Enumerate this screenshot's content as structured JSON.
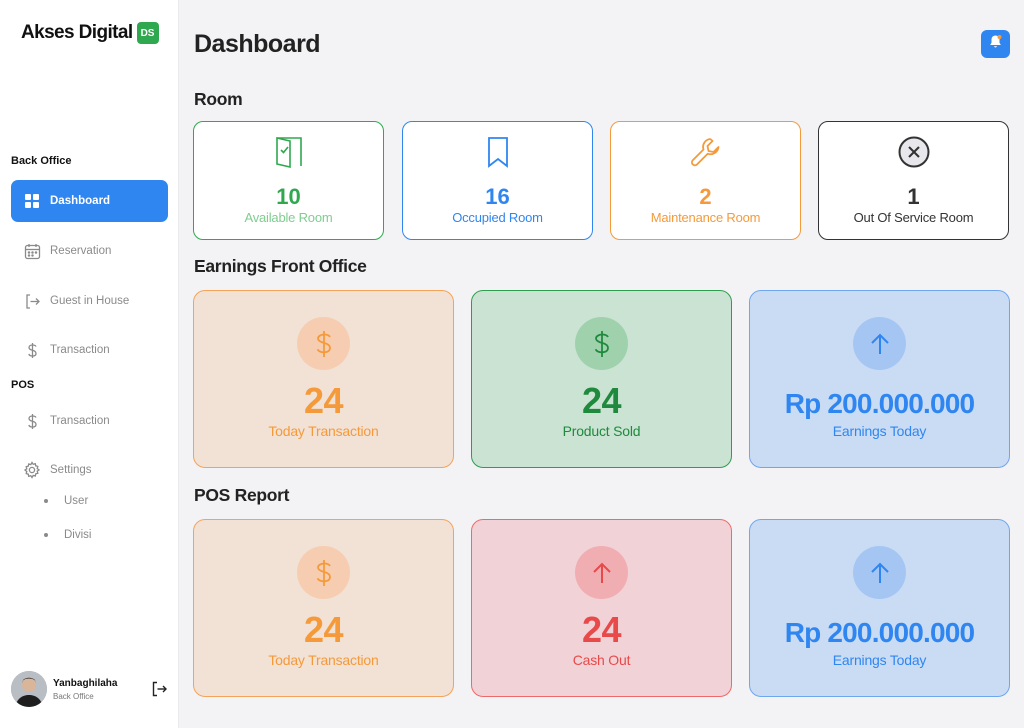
{
  "brand": {
    "name": "Akses Digital",
    "badge": "DS"
  },
  "sidebar": {
    "back_office_label": "Back Office",
    "pos_label": "POS",
    "items": [
      {
        "label": "Dashboard",
        "icon": "grid-icon"
      },
      {
        "label": "Reservation",
        "icon": "calendar-icon"
      },
      {
        "label": "Guest in House",
        "icon": "login-icon"
      },
      {
        "label": "Transaction",
        "icon": "dollar-icon"
      }
    ],
    "pos_items": [
      {
        "label": "Transaction",
        "icon": "dollar-icon"
      },
      {
        "label": "Settings",
        "icon": "gear-icon"
      }
    ],
    "settings_sub": [
      "User",
      "Divisi"
    ],
    "user": {
      "name": "Yanbaghilaha",
      "role": "Back Office"
    }
  },
  "header": {
    "title": "Dashboard"
  },
  "sections": {
    "room": "Room",
    "earnings": "Earnings Front Office",
    "pos_report": "POS Report"
  },
  "rooms": [
    {
      "value": "10",
      "label": "Available Room",
      "color": "#2fa84f"
    },
    {
      "value": "16",
      "label": "Occupied Room",
      "color": "#2f86f0"
    },
    {
      "value": "2",
      "label": "Maintenance Room",
      "color": "#f59a3a"
    },
    {
      "value": "1",
      "label": "Out Of Service Room",
      "color": "#333333"
    }
  ],
  "earnings": [
    {
      "value": "24",
      "label": "Today Transaction",
      "color": "#f59a3a"
    },
    {
      "value": "24",
      "label": "Product Sold",
      "color": "#1f8a3e"
    },
    {
      "value": "Rp 200.000.000",
      "label": "Earnings Today",
      "color": "#2f86f0"
    }
  ],
  "pos_report": [
    {
      "value": "24",
      "label": "Today Transaction",
      "color": "#f59a3a"
    },
    {
      "value": "24",
      "label": "Cash Out",
      "color": "#e84a4a"
    },
    {
      "value": "Rp 200.000.000",
      "label": "Earnings Today",
      "color": "#2f86f0"
    }
  ]
}
